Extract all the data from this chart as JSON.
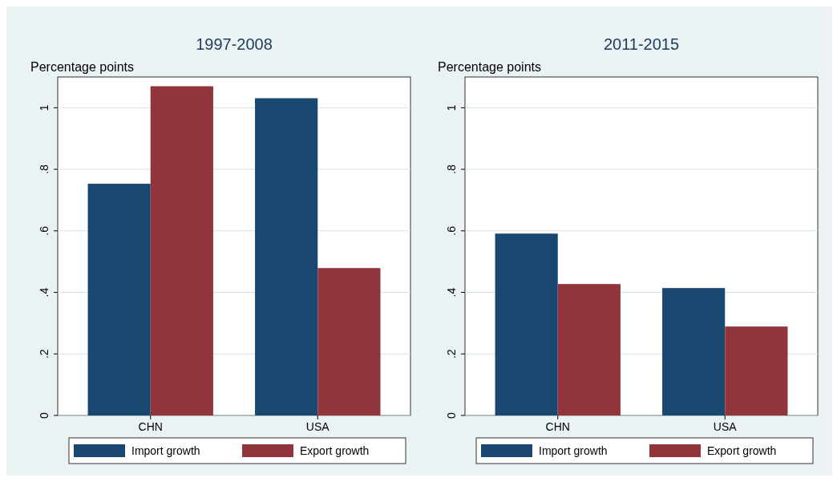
{
  "chart_data": [
    {
      "type": "bar",
      "title": "1997-2008",
      "ylabel": "Percentage points",
      "categories": [
        "CHN",
        "USA"
      ],
      "series": [
        {
          "name": "Import growth",
          "color": "#1a476f",
          "values": [
            0.753,
            1.031
          ]
        },
        {
          "name": "Export growth",
          "color": "#90353b",
          "values": [
            1.07,
            0.479
          ]
        }
      ],
      "ylim": [
        0,
        1.1
      ],
      "yticks": [
        {
          "value": 0,
          "label": "0"
        },
        {
          "value": 0.2,
          "label": ".2"
        },
        {
          "value": 0.4,
          "label": ".4"
        },
        {
          "value": 0.6,
          "label": ".6"
        },
        {
          "value": 0.8,
          "label": ".8"
        },
        {
          "value": 1,
          "label": "1"
        }
      ],
      "grid": "y",
      "legend": "bottom"
    },
    {
      "type": "bar",
      "title": "2011-2015",
      "ylabel": "Percentage points",
      "categories": [
        "CHN",
        "USA"
      ],
      "series": [
        {
          "name": "Import growth",
          "color": "#1a476f",
          "values": [
            0.591,
            0.414
          ]
        },
        {
          "name": "Export growth",
          "color": "#90353b",
          "values": [
            0.427,
            0.289
          ]
        }
      ],
      "ylim": [
        0,
        1.1
      ],
      "yticks": [
        {
          "value": 0,
          "label": "0"
        },
        {
          "value": 0.2,
          "label": ".2"
        },
        {
          "value": 0.4,
          "label": ".4"
        },
        {
          "value": 0.6,
          "label": ".6"
        },
        {
          "value": 0.8,
          "label": ".8"
        },
        {
          "value": 1,
          "label": "1"
        }
      ],
      "grid": "y",
      "legend": "bottom"
    }
  ]
}
